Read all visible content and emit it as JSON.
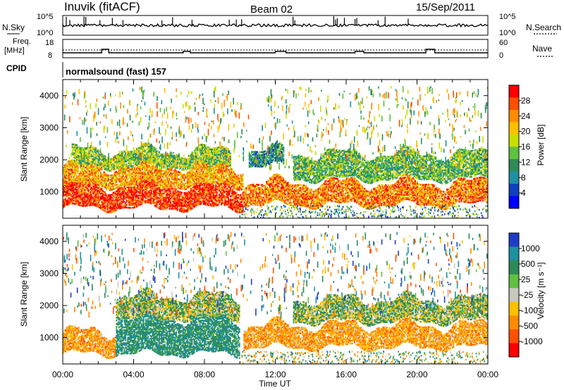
{
  "header": {
    "station": "Inuvik  (fitACF)",
    "beam": "Beam 02",
    "date": "15/Sep/2011"
  },
  "top_panels": {
    "nsky_label": "N.Sky",
    "nsearch_label": "N.Search",
    "freq_label_1": "Freq.",
    "freq_label_2": "[MHz]",
    "nave_label": "Nave",
    "cpid_label": "CPID",
    "cpid_value": "normalsound (fast) 157",
    "noise_left_ticks": [
      "10^5",
      "10^0"
    ],
    "noise_right_ticks": [
      "10^5",
      "10^0"
    ],
    "freq_left_ticks": [
      "18",
      "8"
    ],
    "nave_right_ticks": [
      "60",
      "0"
    ]
  },
  "chart_data": [
    {
      "type": "heatmap",
      "title": "",
      "xlabel": "Time UT",
      "ylabel": "Slant Range [km]",
      "xlim": [
        "00:00",
        "24:00"
      ],
      "ylim": [
        180,
        4500
      ],
      "x_ticks": [
        "00:00",
        "04:00",
        "08:00",
        "12:00",
        "16:00",
        "20:00",
        "00:00"
      ],
      "y_ticks": [
        1000,
        2000,
        3000,
        4000
      ],
      "colorbar": {
        "label": "Power [dB]",
        "ticks": [
          "28",
          "24",
          "20",
          "16",
          "12",
          "8",
          "4"
        ],
        "range": [
          0,
          30
        ],
        "colors": [
          "#ff0000",
          "#ff5000",
          "#ff8c00",
          "#ffc000",
          "#c8e000",
          "#60c040",
          "#2e8b57",
          "#1e90a0",
          "#1040c0",
          "#0000ff"
        ]
      },
      "bands": [
        {
          "t_start": 0,
          "t_end": 10.2,
          "range_km": [
            500,
            1200
          ],
          "value_db": 28
        },
        {
          "t_start": 0,
          "t_end": 10.2,
          "range_km": [
            1200,
            1800
          ],
          "value_db": 22
        },
        {
          "t_start": 0.5,
          "t_end": 9.5,
          "range_km": [
            1800,
            2300
          ],
          "value_db": 14
        },
        {
          "t_start": 10.2,
          "t_end": 24,
          "range_km": [
            600,
            1300
          ],
          "value_db": 24
        },
        {
          "t_start": 13,
          "t_end": 24,
          "range_km": [
            1400,
            2200
          ],
          "value_db": 12
        },
        {
          "t_start": 10.5,
          "t_end": 12.5,
          "range_km": [
            1800,
            2300
          ],
          "value_db": 8
        }
      ]
    },
    {
      "type": "heatmap",
      "title": "",
      "xlabel": "Time UT",
      "ylabel": "Slant Range [km]",
      "xlim": [
        "00:00",
        "24:00"
      ],
      "ylim": [
        180,
        4500
      ],
      "x_ticks": [
        "00:00",
        "04:00",
        "08:00",
        "12:00",
        "16:00",
        "20:00",
        "00:00"
      ],
      "y_ticks": [
        1000,
        2000,
        3000,
        4000
      ],
      "colorbar": {
        "label": "Velocity [m s⁻¹]",
        "ticks": [
          "1000",
          "500",
          "25",
          "-25",
          "-100",
          "-500",
          "-1000"
        ],
        "colors": [
          "#1e3cc8",
          "#1e90a0",
          "#2e8b57",
          "#60c040",
          "#c8c8c0",
          "#ffc000",
          "#ff8c00",
          "#ff5000",
          "#ff0000"
        ]
      },
      "bands": [
        {
          "t_start": 0,
          "t_end": 3,
          "range_km": [
            500,
            1200
          ],
          "value_ms": -300
        },
        {
          "t_start": 3,
          "t_end": 10,
          "range_km": [
            500,
            1600
          ],
          "value_ms": 200
        },
        {
          "t_start": 3,
          "t_end": 10,
          "range_km": [
            1600,
            2300
          ],
          "value_ms": 0
        },
        {
          "t_start": 10.2,
          "t_end": 24,
          "range_km": [
            700,
            1400
          ],
          "value_ms": -300
        },
        {
          "t_start": 13,
          "t_end": 24,
          "range_km": [
            1500,
            2200
          ],
          "value_ms": 0
        }
      ]
    }
  ]
}
